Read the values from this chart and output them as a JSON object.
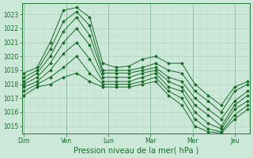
{
  "xlabel": "Pression niveau de la mer( hPa )",
  "bg_color": "#cce8d8",
  "grid_color_major": "#aaccb8",
  "grid_color_minor": "#bbddc8",
  "line_color": "#1a6b2a",
  "ylim": [
    1014.5,
    1023.8
  ],
  "yticks": [
    1015,
    1016,
    1017,
    1018,
    1019,
    1020,
    1021,
    1022,
    1023
  ],
  "day_labels": [
    "Dim",
    "Ven",
    "Lun",
    "Mar",
    "Mer",
    "Jeu"
  ],
  "day_positions": [
    0,
    1,
    2,
    3,
    4,
    5
  ],
  "xlim": [
    -0.05,
    5.35
  ],
  "series": [
    [
      1018.8,
      1019.2,
      1021.0,
      1023.3,
      1023.5,
      1022.8,
      1019.5,
      1019.2,
      1019.3,
      1019.8,
      1020.0,
      1019.5,
      1019.5,
      1018.0,
      1017.2,
      1016.5,
      1017.8,
      1018.2
    ],
    [
      1018.5,
      1019.0,
      1020.5,
      1022.5,
      1023.2,
      1022.2,
      1019.0,
      1019.0,
      1019.0,
      1019.2,
      1019.5,
      1019.0,
      1018.8,
      1017.5,
      1016.8,
      1016.0,
      1017.5,
      1018.0
    ],
    [
      1018.2,
      1018.8,
      1020.0,
      1021.8,
      1022.8,
      1021.5,
      1018.8,
      1018.8,
      1018.8,
      1019.0,
      1019.2,
      1018.5,
      1018.2,
      1017.0,
      1016.2,
      1015.5,
      1016.8,
      1017.5
    ],
    [
      1018.0,
      1018.5,
      1019.5,
      1021.0,
      1022.0,
      1020.8,
      1018.5,
      1018.5,
      1018.5,
      1018.8,
      1019.0,
      1018.2,
      1017.8,
      1016.5,
      1015.8,
      1015.0,
      1016.5,
      1017.2
    ],
    [
      1017.8,
      1018.2,
      1019.0,
      1020.2,
      1021.0,
      1019.8,
      1018.2,
      1018.2,
      1018.2,
      1018.5,
      1018.8,
      1017.8,
      1017.5,
      1016.0,
      1015.2,
      1014.8,
      1016.2,
      1016.8
    ],
    [
      1017.5,
      1018.0,
      1018.5,
      1019.2,
      1020.0,
      1018.8,
      1018.0,
      1018.0,
      1018.0,
      1018.2,
      1018.5,
      1017.5,
      1017.0,
      1015.5,
      1014.8,
      1014.6,
      1015.8,
      1016.5
    ],
    [
      1017.2,
      1017.8,
      1018.0,
      1018.5,
      1018.8,
      1018.2,
      1017.8,
      1017.8,
      1017.8,
      1018.0,
      1018.2,
      1017.2,
      1016.5,
      1015.0,
      1014.6,
      1014.5,
      1015.5,
      1016.2
    ]
  ]
}
